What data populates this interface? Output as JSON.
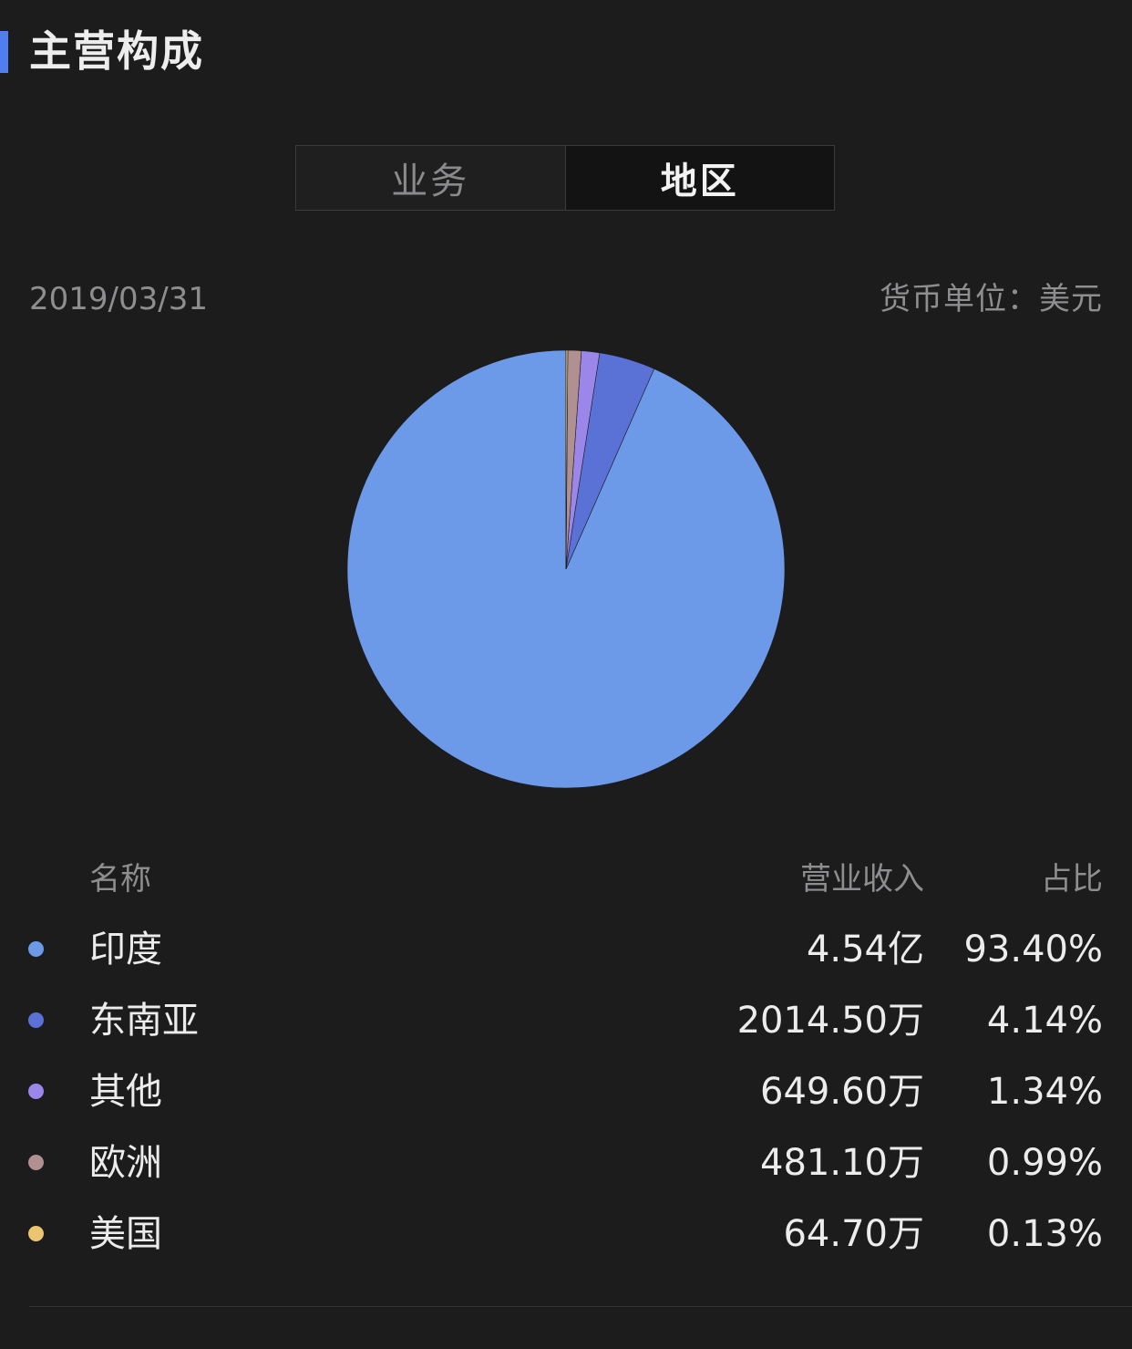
{
  "section": {
    "title": "主营构成"
  },
  "tabs": [
    {
      "label": "业务",
      "active": false
    },
    {
      "label": "地区",
      "active": true
    }
  ],
  "header": {
    "date": "2019/03/31",
    "currency": "货币单位：美元"
  },
  "table": {
    "headers": {
      "name": "名称",
      "revenue": "营业收入",
      "share": "占比"
    }
  },
  "colors": {
    "accent": "#4f7ef0",
    "background": "#1c1c1d"
  },
  "chart_data": {
    "type": "pie",
    "start_angle": "top",
    "direction": "clockwise",
    "slices": [
      {
        "name": "印度",
        "revenue": "4.54亿",
        "share": "93.40%",
        "value": 93.4,
        "color": "#6c99e8"
      },
      {
        "name": "东南亚",
        "revenue": "2014.50万",
        "share": "4.14%",
        "value": 4.14,
        "color": "#5a72d6"
      },
      {
        "name": "其他",
        "revenue": "649.60万",
        "share": "1.34%",
        "value": 1.34,
        "color": "#9b86ea"
      },
      {
        "name": "欧洲",
        "revenue": "481.10万",
        "share": "0.99%",
        "value": 0.99,
        "color": "#b09090"
      },
      {
        "name": "美国",
        "revenue": "64.70万",
        "share": "0.13%",
        "value": 0.13,
        "color": "#ecc570"
      }
    ]
  }
}
